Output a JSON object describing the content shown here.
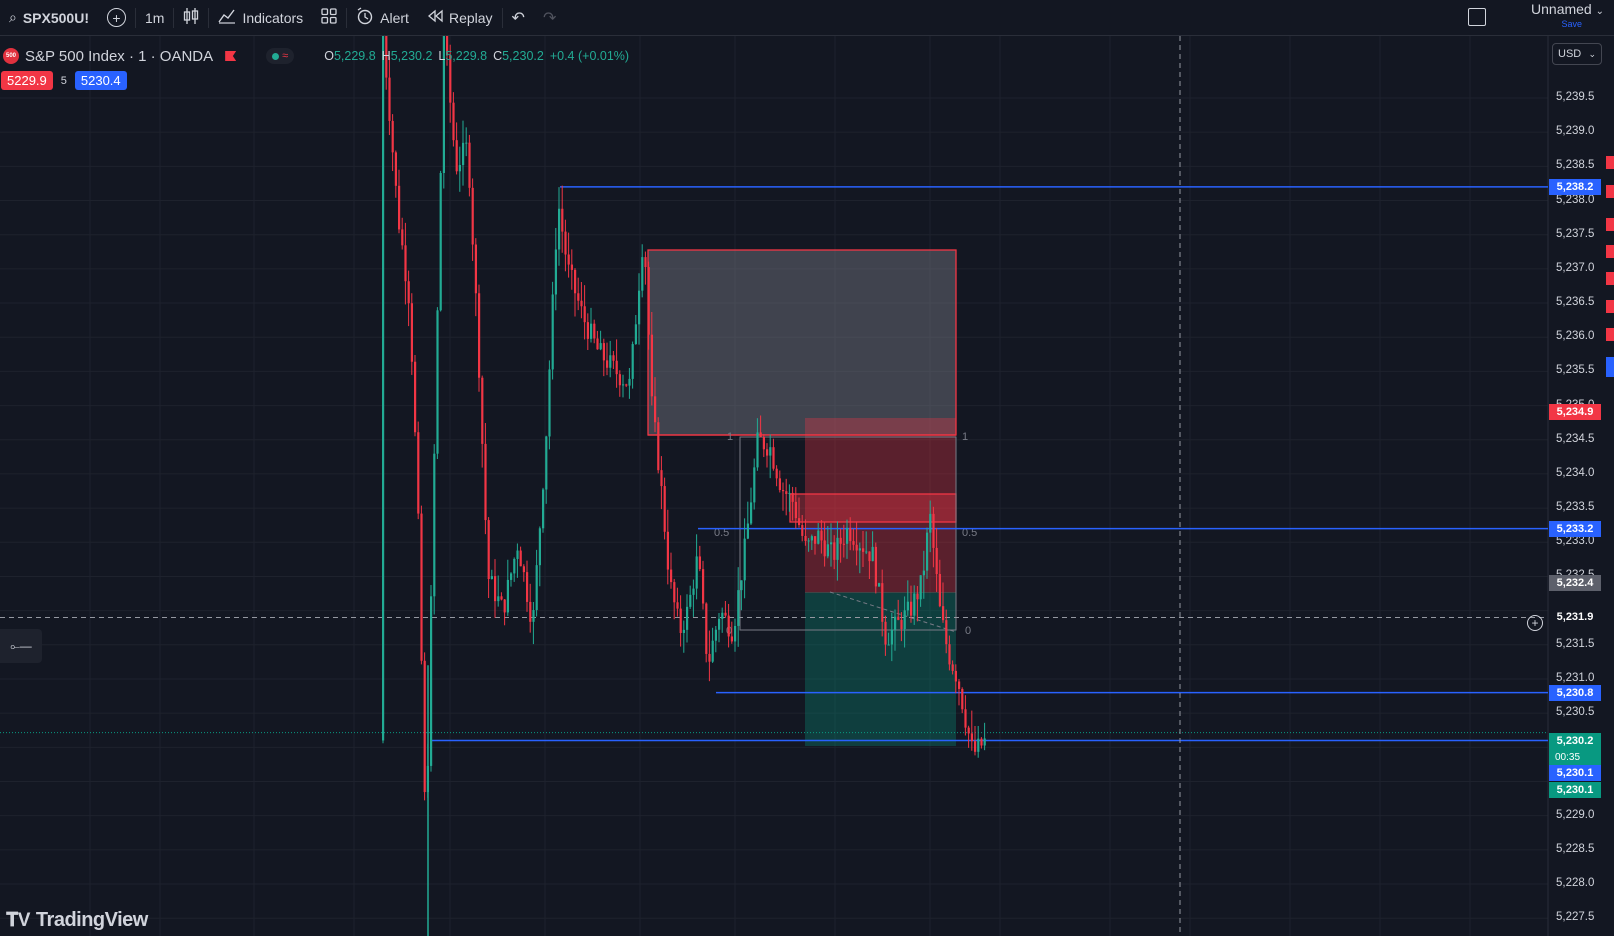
{
  "toolbar": {
    "symbol": "SPX500U!",
    "interval": "1m",
    "indicators_label": "Indicators",
    "alert_label": "Alert",
    "replay_label": "Replay",
    "layout_name": "Unnamed",
    "save_label": "Save"
  },
  "legend": {
    "logo_text": "500",
    "title": "S&P 500 Index · 1 · OANDA",
    "o_label": "O",
    "o": "5,229.8",
    "h_label": "H",
    "h": "5,230.2",
    "l_label": "L",
    "l": "5,229.8",
    "c_label": "C",
    "c": "5,230.2",
    "change": "+0.4 (+0.01%)"
  },
  "quote": {
    "sell": "5229.9",
    "spread": "5",
    "buy": "5230.4"
  },
  "currency": "USD",
  "price_scale": {
    "ticks": [
      "5,239.5",
      "5,239.0",
      "5,238.5",
      "5,238.0",
      "5,237.5",
      "5,237.0",
      "5,236.5",
      "5,236.0",
      "5,235.5",
      "5,235.0",
      "5,234.5",
      "5,234.0",
      "5,233.5",
      "5,233.0",
      "5,232.5",
      "5,231.5",
      "5,231.0",
      "5,230.5",
      "5,229.0",
      "5,228.5",
      "5,228.0",
      "5,227.5"
    ],
    "badges": [
      {
        "price": "5,238.2",
        "style": "blue"
      },
      {
        "price": "5,234.9",
        "style": "red"
      },
      {
        "price": "5,233.2",
        "style": "blue"
      },
      {
        "price": "5,232.4",
        "style": "gray"
      },
      {
        "price": "5,231.9",
        "style": "cross"
      },
      {
        "price": "5,230.8",
        "style": "blue"
      },
      {
        "price": "5,230.2",
        "style": "green"
      },
      {
        "price": "5,230.1",
        "style": "blue"
      },
      {
        "price": "5,230.1",
        "style": "green"
      }
    ],
    "countdown": "00:35"
  },
  "fib_labels": {
    "one": "1",
    "half": "0.5",
    "zero": "0"
  },
  "colors": {
    "up": "#22ab94",
    "down": "#f23645",
    "line": "#2962ff",
    "bg": "#131722"
  },
  "chart_data": {
    "type": "candlestick",
    "symbol": "SPX500USD",
    "interval": "1m",
    "price_range": [
      5227.4,
      5240.0
    ],
    "horizontal_lines": [
      5238.2,
      5233.2,
      5230.8,
      5230.1
    ],
    "crosshair_price": 5231.9,
    "last_price": 5230.2
  },
  "branding": {
    "logo_text": "TradingView"
  }
}
